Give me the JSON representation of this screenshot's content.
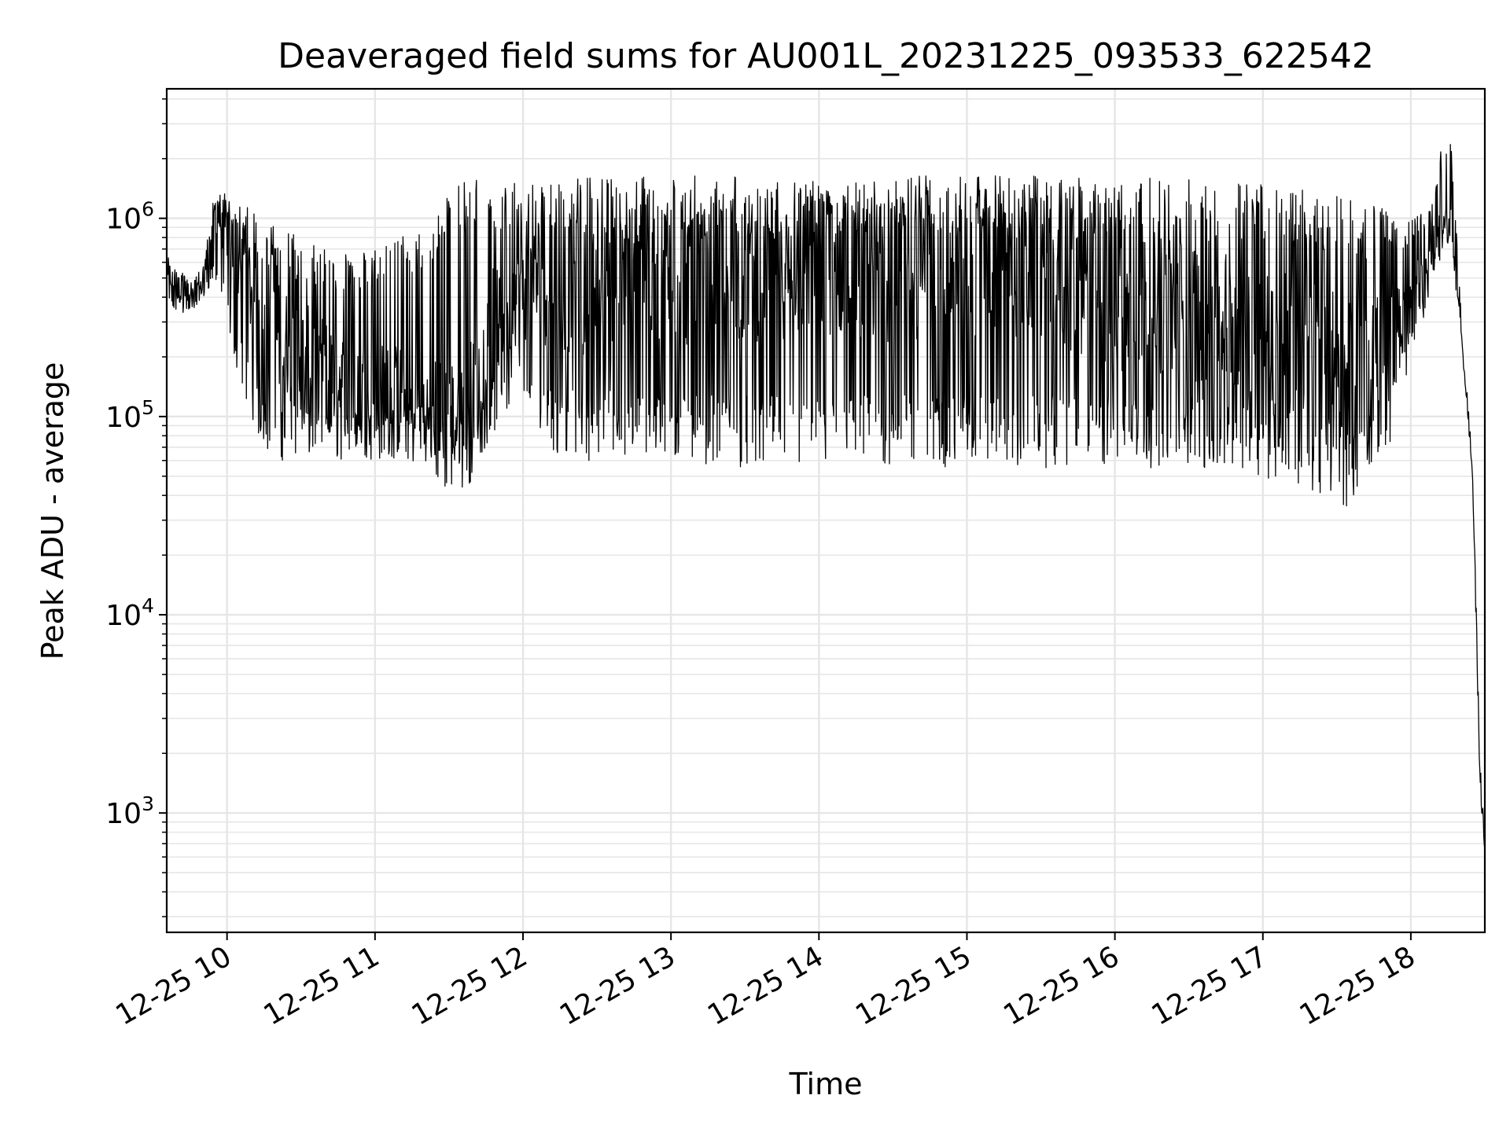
{
  "chart_data": {
    "type": "line",
    "title": "Deaveraged field sums for AU001L_20231225_093533_622542",
    "xlabel": "Time",
    "ylabel": "Peak ADU - average",
    "y_scale": "log",
    "ylim": [
      250,
      4500000
    ],
    "xlim": [
      "2023-12-25 09:35:33",
      "2023-12-25 18:30:00"
    ],
    "x_ticks": [
      "12-25 10",
      "12-25 11",
      "12-25 12",
      "12-25 13",
      "12-25 14",
      "12-25 15",
      "12-25 16",
      "12-25 17",
      "12-25 18"
    ],
    "y_ticks": [
      {
        "value": 1000,
        "base": "10",
        "exp": "3"
      },
      {
        "value": 10000,
        "base": "10",
        "exp": "4"
      },
      {
        "value": 100000,
        "base": "10",
        "exp": "5"
      },
      {
        "value": 1000000,
        "base": "10",
        "exp": "6"
      }
    ],
    "grid": true,
    "legend": "none",
    "colors": {
      "line": "#000000",
      "grid": "#e6e6e6",
      "axes": "#000000"
    },
    "series": [
      {
        "x": [
          "2023-12-25 09:36",
          "2023-12-25 09:40",
          "2023-12-25 09:45",
          "2023-12-25 09:50",
          "2023-12-25 09:55",
          "2023-12-25 10:00",
          "2023-12-25 10:05",
          "2023-12-25 10:10",
          "2023-12-25 10:15",
          "2023-12-25 10:20",
          "2023-12-25 10:30",
          "2023-12-25 10:40",
          "2023-12-25 10:50",
          "2023-12-25 11:00",
          "2023-12-25 11:10",
          "2023-12-25 11:20",
          "2023-12-25 11:30",
          "2023-12-25 11:40",
          "2023-12-25 11:50",
          "2023-12-25 12:00",
          "2023-12-25 12:15",
          "2023-12-25 12:30",
          "2023-12-25 13:00",
          "2023-12-25 13:30",
          "2023-12-25 14:00",
          "2023-12-25 14:30",
          "2023-12-25 15:00",
          "2023-12-25 15:30",
          "2023-12-25 16:00",
          "2023-12-25 16:30",
          "2023-12-25 17:00",
          "2023-12-25 17:20",
          "2023-12-25 17:35",
          "2023-12-25 17:50",
          "2023-12-25 18:00",
          "2023-12-25 18:08",
          "2023-12-25 18:13",
          "2023-12-25 18:16",
          "2023-12-25 18:20",
          "2023-12-25 18:25",
          "2023-12-25 18:28",
          "2023-12-25 18:30"
        ],
        "values": [
          550000,
          420000,
          400000,
          450000,
          1100000,
          900000,
          600000,
          450000,
          300000,
          250000,
          200000,
          170000,
          150000,
          130000,
          120000,
          100000,
          90000,
          110000,
          350000,
          450000,
          500000,
          400000,
          500000,
          550000,
          600000,
          550000,
          600000,
          550000,
          400000,
          350000,
          280000,
          220000,
          180000,
          200000,
          350000,
          700000,
          950000,
          1000000,
          300000,
          50000,
          1500,
          600
        ],
        "min_values": [
          350000,
          330000,
          330000,
          380000,
          500000,
          300000,
          150000,
          90000,
          70000,
          60000,
          60000,
          60000,
          60000,
          60000,
          60000,
          60000,
          55000,
          55000,
          90000,
          120000,
          60000,
          60000,
          60000,
          55000,
          55000,
          55000,
          55000,
          55000,
          55000,
          55000,
          50000,
          40000,
          35000,
          60000,
          200000,
          400000,
          700000,
          800000,
          300000,
          50000,
          1500,
          600
        ],
        "max_values": [
          650000,
          550000,
          500000,
          550000,
          1300000,
          1400000,
          1200000,
          1100000,
          1000000,
          900000,
          800000,
          750000,
          650000,
          700000,
          900000,
          850000,
          1500000,
          1600000,
          1500000,
          1500000,
          1600000,
          1600000,
          1650000,
          1650000,
          1650000,
          1650000,
          1650000,
          1700000,
          1600000,
          1600000,
          1500000,
          1400000,
          1300000,
          1100000,
          1000000,
          1150000,
          2500000,
          2900000,
          400000,
          60000,
          2000,
          700
        ]
      }
    ]
  }
}
